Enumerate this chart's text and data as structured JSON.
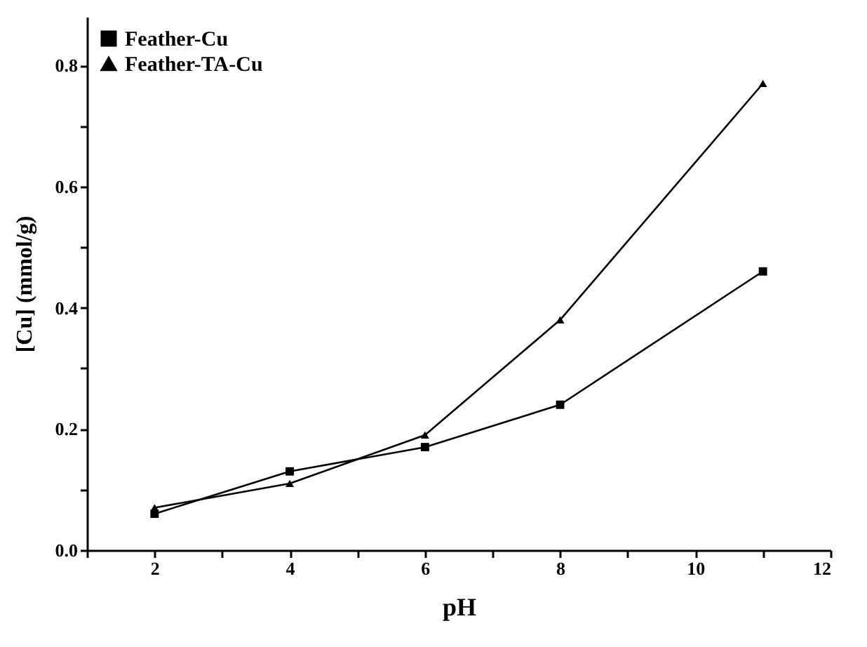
{
  "chart_data": {
    "type": "line",
    "xlabel": "pH",
    "ylabel": "[Cu] (mmol/g)",
    "x": [
      2,
      4,
      6,
      8,
      11
    ],
    "series": [
      {
        "name": "Feather-Cu",
        "color": "#000000",
        "marker": "square",
        "values": [
          0.06,
          0.13,
          0.17,
          0.24,
          0.46
        ]
      },
      {
        "name": "Feather-TA-Cu",
        "color": "#000000",
        "marker": "triangle",
        "values": [
          0.07,
          0.11,
          0.19,
          0.38,
          0.77
        ]
      }
    ],
    "xlim": [
      1,
      12
    ],
    "xticks": [
      {
        "value": 1,
        "label": null
      },
      2,
      {
        "value": 3,
        "label": null
      },
      4,
      {
        "value": 5,
        "label": null
      },
      6,
      {
        "value": 7,
        "label": null
      },
      8,
      {
        "value": 9,
        "label": null
      },
      10,
      {
        "value": 11,
        "label": null
      },
      12
    ],
    "ylim": [
      0,
      0.88
    ],
    "yticks": [
      {
        "value": 0,
        "label": "0.0"
      },
      {
        "value": 0.1,
        "label": null
      },
      0.2,
      {
        "value": 0.3,
        "label": null
      },
      0.4,
      {
        "value": 0.5,
        "label": null
      },
      0.6,
      {
        "value": 0.7,
        "label": null
      },
      0.8
    ],
    "grid": false,
    "legend": "top left",
    "line_style": "solid"
  }
}
